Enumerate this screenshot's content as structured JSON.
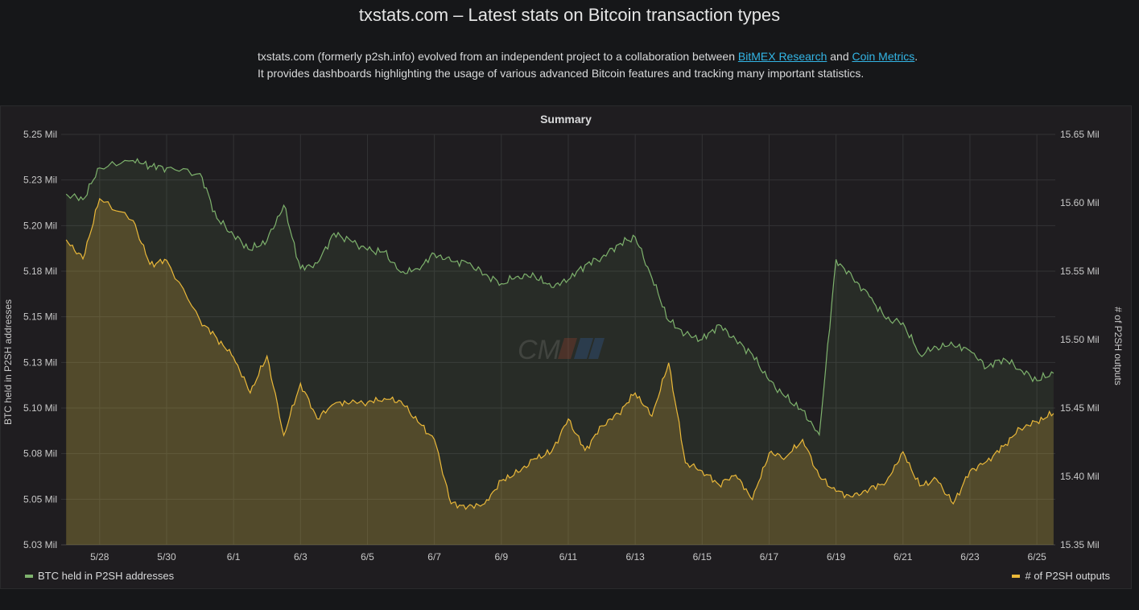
{
  "page": {
    "title": "txstats.com – Latest stats on Bitcoin transaction types",
    "intro_line1_pre": "txstats.com (formerly p2sh.info) evolved from an independent project to a collaboration between ",
    "link_bitmex": "BitMEX Research",
    "intro_and": " and ",
    "link_coinmetrics": "Coin Metrics",
    "intro_line1_post": ".",
    "intro_line2": "It provides dashboards highlighting the usage of various advanced Bitcoin features and tracking many important statistics."
  },
  "panel": {
    "title": "Summary",
    "watermark_icon": "coin-metrics-logo"
  },
  "chart_data": {
    "type": "line",
    "title": "Summary",
    "x_ticks": [
      "5/28",
      "5/30",
      "6/1",
      "6/3",
      "6/5",
      "6/7",
      "6/9",
      "6/11",
      "6/13",
      "6/15",
      "6/17",
      "6/19",
      "6/21",
      "6/23",
      "6/25"
    ],
    "x_range_days": [
      -1.15,
      28.55
    ],
    "left_axis": {
      "label": "BTC held in P2SH addresses",
      "ticks": [
        "5.03 Mil",
        "5.05 Mil",
        "5.08 Mil",
        "5.10 Mil",
        "5.13 Mil",
        "5.15 Mil",
        "5.18 Mil",
        "5.20 Mil",
        "5.23 Mil",
        "5.25 Mil"
      ],
      "ylim": [
        5.03,
        5.25
      ]
    },
    "right_axis": {
      "label": "# of P2SH outputs",
      "ticks": [
        "15.35 Mil",
        "15.40 Mil",
        "15.45 Mil",
        "15.50 Mil",
        "15.55 Mil",
        "15.60 Mil",
        "15.65 Mil"
      ],
      "ylim": [
        15.35,
        15.65
      ]
    },
    "grid": true,
    "legend_placement": "bottom",
    "series": [
      {
        "name": "BTC held in P2SH addresses",
        "axis": "left",
        "color": "#7eb26d",
        "x": [
          "5/27",
          "5/27 12:00",
          "5/28",
          "5/29",
          "5/29 12:00",
          "5/30",
          "5/31",
          "5/31 12:00",
          "6/1",
          "6/1 12:00",
          "6/2",
          "6/2 12:00",
          "6/3",
          "6/3 12:00",
          "6/4",
          "6/4 12:00",
          "6/5",
          "6/5 12:00",
          "6/6",
          "6/6 12:00",
          "6/7",
          "6/7 12:00",
          "6/8",
          "6/8 12:00",
          "6/9",
          "6/9 12:00",
          "6/10",
          "6/10 12:00",
          "6/11",
          "6/11 12:00",
          "6/12",
          "6/12 12:00",
          "6/13",
          "6/13 12:00",
          "6/14",
          "6/14 12:00",
          "6/15",
          "6/15 12:00",
          "6/16",
          "6/16 12:00",
          "6/17",
          "6/17 12:00",
          "6/18",
          "6/18 12:00",
          "6/19",
          "6/19 12:00",
          "6/20",
          "6/20 12:00",
          "6/21",
          "6/21 12:00",
          "6/22",
          "6/22 12:00",
          "6/23",
          "6/23 12:00",
          "6/24",
          "6/24 12:00",
          "6/25",
          "6/25 12:00"
        ],
        "y": [
          5.218,
          5.215,
          5.232,
          5.236,
          5.233,
          5.232,
          5.229,
          5.205,
          5.196,
          5.188,
          5.193,
          5.212,
          5.178,
          5.181,
          5.197,
          5.193,
          5.188,
          5.187,
          5.176,
          5.178,
          5.186,
          5.182,
          5.181,
          5.175,
          5.17,
          5.174,
          5.174,
          5.168,
          5.172,
          5.18,
          5.184,
          5.191,
          5.195,
          5.173,
          5.15,
          5.143,
          5.14,
          5.148,
          5.14,
          5.132,
          5.118,
          5.109,
          5.102,
          5.089,
          5.183,
          5.173,
          5.163,
          5.151,
          5.149,
          5.132,
          5.136,
          5.137,
          5.134,
          5.125,
          5.13,
          5.124,
          5.118,
          5.122
        ]
      },
      {
        "name": "# of P2SH outputs",
        "axis": "right",
        "color": "#eab839",
        "x": [
          "5/27",
          "5/27 12:00",
          "5/28",
          "5/29",
          "5/29 12:00",
          "5/30",
          "5/31",
          "5/31 12:00",
          "6/1",
          "6/1 12:00",
          "6/2",
          "6/2 12:00",
          "6/3",
          "6/3 12:00",
          "6/4",
          "6/4 12:00",
          "6/5",
          "6/5 12:00",
          "6/6",
          "6/6 12:00",
          "6/7",
          "6/7 12:00",
          "6/8",
          "6/8 12:00",
          "6/9",
          "6/9 12:00",
          "6/10",
          "6/10 12:00",
          "6/11",
          "6/11 12:00",
          "6/12",
          "6/12 12:00",
          "6/13",
          "6/13 12:00",
          "6/14",
          "6/14 12:00",
          "6/15",
          "6/15 12:00",
          "6/16",
          "6/16 12:00",
          "6/17",
          "6/17 12:00",
          "6/18",
          "6/18 12:00",
          "6/19",
          "6/19 12:00",
          "6/20",
          "6/20 12:00",
          "6/21",
          "6/21 12:00",
          "6/22",
          "6/22 12:00",
          "6/23",
          "6/23 12:00",
          "6/24",
          "6/24 12:00",
          "6/25",
          "6/25 12:00"
        ],
        "y": [
          15.573,
          15.559,
          15.603,
          15.587,
          15.555,
          15.558,
          15.514,
          15.501,
          15.487,
          15.461,
          15.488,
          15.43,
          15.468,
          15.442,
          15.453,
          15.454,
          15.454,
          15.457,
          15.455,
          15.44,
          15.427,
          15.38,
          15.378,
          15.38,
          15.397,
          15.403,
          15.413,
          15.418,
          15.442,
          15.419,
          15.437,
          15.446,
          15.461,
          15.444,
          15.483,
          15.41,
          15.404,
          15.394,
          15.401,
          15.383,
          15.417,
          15.414,
          15.427,
          15.4,
          15.389,
          15.385,
          15.391,
          15.396,
          15.418,
          15.393,
          15.398,
          15.38,
          15.404,
          15.411,
          15.422,
          15.435,
          15.44,
          15.446
        ]
      }
    ]
  },
  "legend": {
    "left": "BTC held in P2SH addresses",
    "right": "# of P2SH outputs"
  },
  "colors": {
    "background": "#161719",
    "panel": "#1f1d20",
    "green": "#7eb26d",
    "yellow": "#eab839",
    "link": "#33b5e5"
  }
}
